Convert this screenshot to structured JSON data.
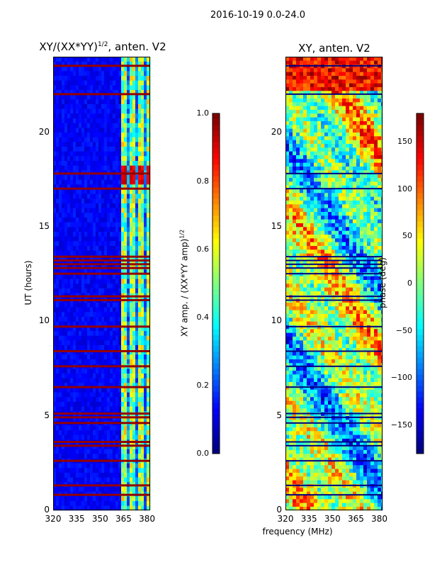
{
  "suptitle": "2016-10-19 0.0-24.0",
  "chart_data": [
    {
      "type": "heatmap",
      "title_text": "XY/(XX*YY)",
      "title_sup": "1/2",
      "title_suffix": ", anten. V2",
      "xlabel": "",
      "ylabel": "UT (hours)",
      "xlim": [
        320,
        382
      ],
      "ylim": [
        0,
        24
      ],
      "xticks": [
        320,
        335,
        350,
        365,
        380
      ],
      "yticks": [
        0,
        5,
        10,
        15,
        20
      ],
      "colorbar": {
        "label_text": "XY amp. / (XX*YY amp)",
        "label_sup": "1/2",
        "range": [
          0.0,
          1.0
        ],
        "ticks": [
          "0.0",
          "0.2",
          "0.4",
          "0.6",
          "0.8",
          "1.0"
        ],
        "colormap": "jet"
      },
      "flagged_hours": [
        0.8,
        1.3,
        2.6,
        3.4,
        3.6,
        4.6,
        4.9,
        5.1,
        6.5,
        7.6,
        8.4,
        9.7,
        11.1,
        11.3,
        12.5,
        12.8,
        13.0,
        13.2,
        13.4,
        17.0,
        17.8,
        22.0,
        23.5
      ],
      "bright_band_start_mhz": 363
    },
    {
      "type": "heatmap",
      "title_text": "XY, anten. V2",
      "xlabel": "frequency (MHz)",
      "ylabel": "",
      "xlim": [
        320,
        382
      ],
      "ylim": [
        0,
        24
      ],
      "xticks": [
        320,
        335,
        350,
        365,
        380
      ],
      "yticks": [
        0,
        5,
        10,
        15,
        20
      ],
      "colorbar": {
        "label_text": "phase (deg)",
        "range": [
          -180,
          180
        ],
        "ticks": [
          "−150",
          "−100",
          "−50",
          "0",
          "50",
          "100",
          "150"
        ],
        "tick_values": [
          -150,
          -100,
          -50,
          0,
          50,
          100,
          150
        ],
        "colormap": "jet"
      },
      "flagged_hours": [
        0.8,
        1.3,
        2.6,
        3.4,
        3.6,
        4.6,
        4.9,
        5.1,
        6.5,
        7.6,
        8.4,
        9.7,
        11.1,
        11.3,
        12.5,
        12.8,
        13.0,
        13.2,
        13.4,
        17.0,
        17.8,
        22.0,
        23.5
      ]
    }
  ]
}
